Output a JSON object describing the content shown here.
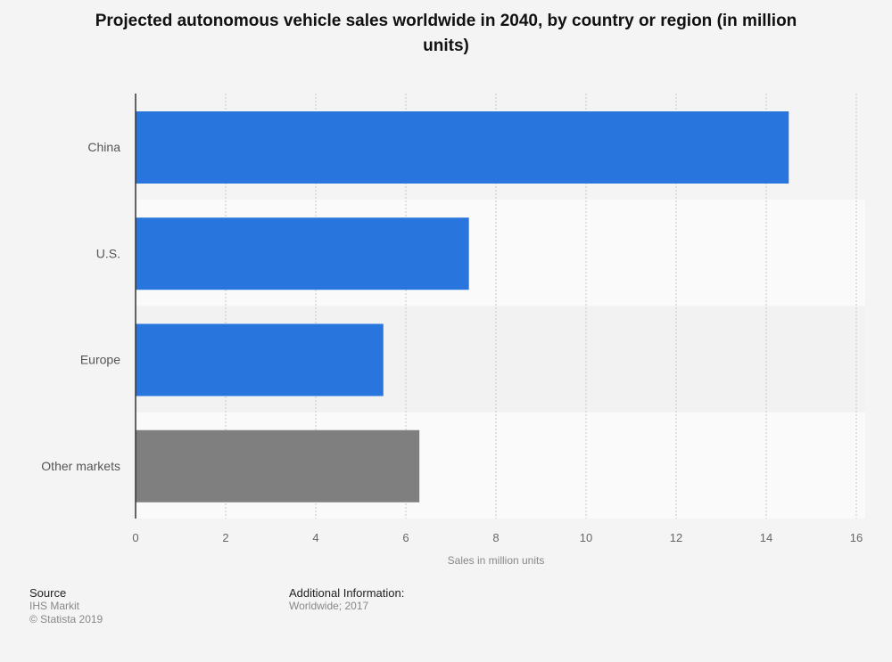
{
  "chart_data": {
    "type": "bar",
    "orientation": "horizontal",
    "title": "Projected autonomous vehicle sales worldwide in 2040, by country or region (in million units)",
    "categories": [
      "China",
      "U.S.",
      "Europe",
      "Other markets"
    ],
    "values": [
      14.5,
      7.4,
      5.5,
      6.3
    ],
    "colors": [
      "#2876dd",
      "#2876dd",
      "#2876dd",
      "#7f7f7f"
    ],
    "xlabel": "Sales in million units",
    "ylabel": "",
    "xlim": [
      0,
      16
    ],
    "xticks": [
      "0",
      "2",
      "4",
      "6",
      "8",
      "10",
      "12",
      "14",
      "16"
    ],
    "grid": true
  },
  "footer": {
    "source_label": "Source",
    "source": "IHS Markit",
    "copyright": "© Statista 2019",
    "info_label": "Additional Information:",
    "info": "Worldwide; 2017"
  }
}
